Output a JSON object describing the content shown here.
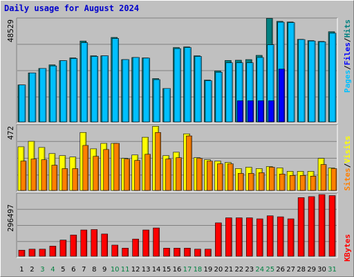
{
  "title": "Daily usage for August 2024",
  "colors": {
    "pages": "#0000ff",
    "files": "#00c0ff",
    "hits": "#008080",
    "visits": "#ffff00",
    "sites": "#ff8000",
    "kbytes": "#ff0000",
    "weekday_text": "#000000",
    "weekend_text": "#008040"
  },
  "chart_data": [
    {
      "type": "bar",
      "ylim": [
        0,
        48529
      ],
      "y_tick_label": "48529",
      "legend": [
        "Pages",
        "Files",
        "Hits"
      ],
      "categories": [
        "1",
        "2",
        "3",
        "4",
        "5",
        "6",
        "7",
        "8",
        "9",
        "10",
        "11",
        "12",
        "13",
        "14",
        "15",
        "16",
        "17",
        "18",
        "19",
        "20",
        "21",
        "22",
        "23",
        "24",
        "25",
        "26",
        "27",
        "28",
        "29",
        "30",
        "31"
      ],
      "series": [
        {
          "name": "Pages",
          "values": [
            0,
            0,
            0,
            0,
            0,
            0,
            0,
            0,
            0,
            0,
            0,
            0,
            0,
            0,
            0,
            0,
            0,
            0,
            0,
            0,
            0,
            10000,
            10000,
            10000,
            10000,
            25000,
            0,
            0,
            0,
            0,
            0
          ]
        },
        {
          "name": "Files",
          "values": [
            17500,
            23200,
            25300,
            26500,
            29000,
            30000,
            37500,
            31000,
            31300,
            39500,
            29500,
            30500,
            30200,
            20000,
            15800,
            34700,
            35200,
            31000,
            19500,
            23500,
            28000,
            28000,
            28000,
            30500,
            36500,
            47200,
            47000,
            39000,
            38300,
            37900,
            42000
          ]
        },
        {
          "name": "Hits",
          "values": [
            17500,
            23200,
            25300,
            27000,
            29000,
            30300,
            38300,
            31300,
            31300,
            40000,
            29500,
            30500,
            30300,
            20500,
            15800,
            35200,
            35500,
            31300,
            19800,
            24100,
            29100,
            29200,
            29500,
            31500,
            49000,
            47600,
            47300,
            39100,
            38500,
            38100,
            42700
          ]
        }
      ]
    },
    {
      "type": "bar",
      "ylim": [
        0,
        472
      ],
      "y_tick_label": "472",
      "legend": [
        "Sites",
        "Visits"
      ],
      "categories": [
        "1",
        "2",
        "3",
        "4",
        "5",
        "6",
        "7",
        "8",
        "9",
        "10",
        "11",
        "12",
        "13",
        "14",
        "15",
        "16",
        "17",
        "18",
        "19",
        "20",
        "21",
        "22",
        "23",
        "24",
        "25",
        "26",
        "27",
        "28",
        "29",
        "30",
        "31"
      ],
      "series": [
        {
          "name": "Visits",
          "values": [
            320,
            360,
            315,
            270,
            255,
            245,
            425,
            305,
            345,
            345,
            235,
            260,
            390,
            470,
            255,
            280,
            415,
            240,
            225,
            215,
            205,
            160,
            170,
            160,
            175,
            165,
            140,
            140,
            140,
            235,
            165
          ]
        },
        {
          "name": "Sites",
          "values": [
            215,
            230,
            225,
            185,
            160,
            160,
            330,
            250,
            300,
            345,
            230,
            220,
            265,
            425,
            230,
            240,
            400,
            235,
            215,
            195,
            195,
            125,
            125,
            130,
            170,
            120,
            110,
            110,
            105,
            190,
            160
          ]
        }
      ]
    },
    {
      "type": "bar",
      "ylim": [
        0,
        296497
      ],
      "y_tick_label": "296497",
      "legend": [
        "KBytes"
      ],
      "categories": [
        "1",
        "2",
        "3",
        "4",
        "5",
        "6",
        "7",
        "8",
        "9",
        "10",
        "11",
        "12",
        "13",
        "14",
        "15",
        "16",
        "17",
        "18",
        "19",
        "20",
        "21",
        "22",
        "23",
        "24",
        "25",
        "26",
        "27",
        "28",
        "29",
        "30",
        "31"
      ],
      "series": [
        {
          "name": "KBytes",
          "values": [
            30000,
            35000,
            35000,
            50000,
            80000,
            105000,
            130000,
            132000,
            110000,
            55000,
            40000,
            85000,
            130000,
            140000,
            40000,
            40000,
            40000,
            35000,
            35000,
            165000,
            190000,
            190000,
            190000,
            185000,
            200000,
            195000,
            185000,
            290000,
            295000,
            305000,
            300000
          ]
        }
      ]
    }
  ]
}
